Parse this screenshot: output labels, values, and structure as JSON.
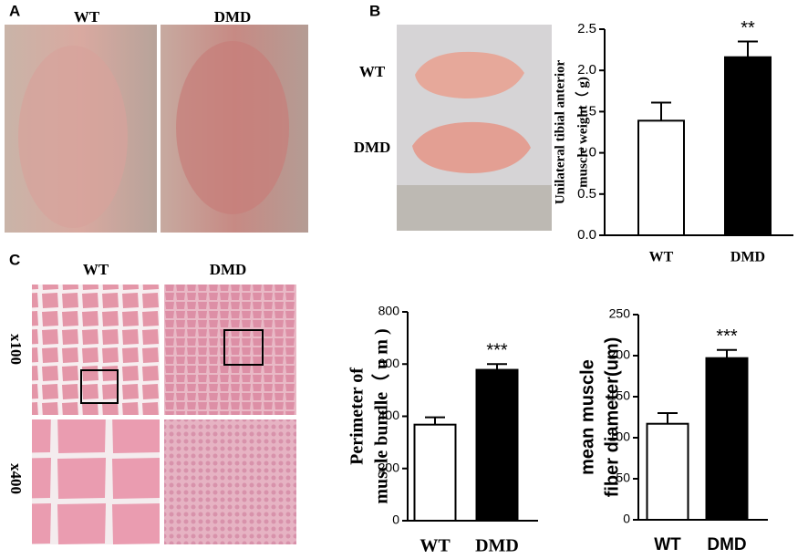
{
  "panel_labels": [
    "A",
    "B",
    "C"
  ],
  "photo_labels": {
    "a_wt": "WT",
    "a_dmd": "DMD",
    "b_wt": "WT",
    "b_dmd": "DMD",
    "c_wt": "WT",
    "c_dmd": "DMD",
    "c_x100": "x100",
    "c_x400": "x400"
  },
  "chart_data": [
    {
      "type": "bar",
      "ylabel": [
        "Unilateral tibial anterior",
        "muscle weight（ g)"
      ],
      "categories": [
        "WT",
        "DMD"
      ],
      "values": [
        1.39,
        2.16
      ],
      "errors": [
        0.22,
        0.19
      ],
      "colors": [
        "#ffffff",
        "#000000"
      ],
      "significance": "**",
      "ylim": [
        0,
        2.5
      ],
      "yticks": [
        {
          "value": 0,
          "label": "0.0"
        },
        0.5,
        {
          "value": 1,
          "label": "1.0"
        },
        1.5,
        {
          "value": 2,
          "label": "2.0"
        },
        2.5
      ]
    },
    {
      "type": "bar",
      "ylabel": [
        "Perimeter of",
        "muscle bundle（ u m )"
      ],
      "categories": [
        "WT",
        "DMD"
      ],
      "values": [
        368,
        578
      ],
      "errors": [
        28,
        22
      ],
      "colors": [
        "#ffffff",
        "#000000"
      ],
      "significance": "***",
      "ylim": [
        0,
        800
      ],
      "yticks": [
        0,
        200,
        400,
        600,
        800
      ]
    },
    {
      "type": "bar",
      "ylabel": [
        "mean muscle",
        "fiber diameter(um)"
      ],
      "categories": [
        "WT",
        "DMD"
      ],
      "values": [
        117,
        197
      ],
      "errors": [
        13,
        10
      ],
      "colors": [
        "#ffffff",
        "#000000"
      ],
      "significance": "***",
      "ylim": [
        0,
        250
      ],
      "yticks": [
        0,
        50,
        100,
        150,
        200,
        250
      ]
    }
  ]
}
